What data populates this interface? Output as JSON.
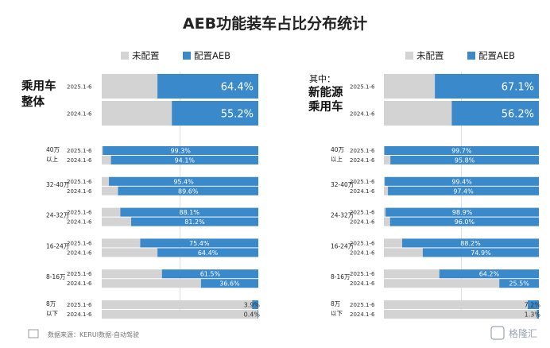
{
  "chart_data": {
    "type": "bar",
    "title": "AEB功能装车占比分布统计",
    "legend": [
      "未配置",
      "配置AEB"
    ],
    "colors": {
      "configured": "#3a8acb",
      "unconfigured": "#d3d3d3"
    },
    "panels": [
      {
        "note": "",
        "label_lines": [
          "乘用车",
          "整体"
        ],
        "overall": {
          "periods": [
            "2025.1-6",
            "2024.1-6"
          ],
          "values": [
            64.4,
            55.2
          ],
          "labels": [
            "64.4%",
            "55.2%"
          ]
        },
        "groups": [
          {
            "label_lines": [
              "40万",
              "以上"
            ],
            "periods": [
              "2025.1-6",
              "2024.1-6"
            ],
            "values": [
              99.3,
              94.1
            ],
            "labels": [
              "99.3%",
              "94.1%"
            ]
          },
          {
            "label_lines": [
              "32-40万"
            ],
            "periods": [
              "2025.1-6",
              "2024.1-6"
            ],
            "values": [
              95.4,
              89.6
            ],
            "labels": [
              "95.4%",
              "89.6%"
            ]
          },
          {
            "label_lines": [
              "24-32万"
            ],
            "periods": [
              "2025.1-6",
              "2024.1-6"
            ],
            "values": [
              88.1,
              81.2
            ],
            "labels": [
              "88.1%",
              "81.2%"
            ]
          },
          {
            "label_lines": [
              "16-24万"
            ],
            "periods": [
              "2025.1-6",
              "2024.1-6"
            ],
            "values": [
              75.4,
              64.4
            ],
            "labels": [
              "75.4%",
              "64.4%"
            ]
          },
          {
            "label_lines": [
              "8-16万"
            ],
            "periods": [
              "2025.1-6",
              "2024.1-6"
            ],
            "values": [
              61.5,
              36.6
            ],
            "labels": [
              "61.5%",
              "36.6%"
            ]
          },
          {
            "label_lines": [
              "8万",
              "以下"
            ],
            "periods": [
              "2025.1-6",
              "2024.1-6"
            ],
            "values": [
              3.9,
              0.4
            ],
            "labels": [
              "3.9%",
              "0.4%"
            ]
          }
        ]
      },
      {
        "note": "其中：",
        "label_lines": [
          "新能源",
          "乘用车"
        ],
        "overall": {
          "periods": [
            "2025.1-6",
            "2024.1-6"
          ],
          "values": [
            67.1,
            56.2
          ],
          "labels": [
            "67.1%",
            "56.2%"
          ]
        },
        "groups": [
          {
            "label_lines": [
              "40万",
              "以上"
            ],
            "periods": [
              "2025.1-6",
              "2024.1-6"
            ],
            "values": [
              99.7,
              95.8
            ],
            "labels": [
              "99.7%",
              "95.8%"
            ]
          },
          {
            "label_lines": [
              "32-40万"
            ],
            "periods": [
              "2025.1-6",
              "2024.1-6"
            ],
            "values": [
              99.4,
              97.4
            ],
            "labels": [
              "99.4%",
              "97.4%"
            ]
          },
          {
            "label_lines": [
              "24-32万"
            ],
            "periods": [
              "2025.1-6",
              "2024.1-6"
            ],
            "values": [
              98.9,
              96.0
            ],
            "labels": [
              "98.9%",
              "96.0%"
            ]
          },
          {
            "label_lines": [
              "16-24万"
            ],
            "periods": [
              "2025.1-6",
              "2024.1-6"
            ],
            "values": [
              88.2,
              74.9
            ],
            "labels": [
              "88.2%",
              "74.9%"
            ]
          },
          {
            "label_lines": [
              "8-16万"
            ],
            "periods": [
              "2025.1-6",
              "2024.1-6"
            ],
            "values": [
              64.2,
              25.5
            ],
            "labels": [
              "64.2%",
              "25.5%"
            ]
          },
          {
            "label_lines": [
              "8万",
              "以下"
            ],
            "periods": [
              "2025.1-6",
              "2024.1-6"
            ],
            "values": [
              7.2,
              1.3
            ],
            "labels": [
              "7.2%",
              "1.3%"
            ]
          }
        ]
      }
    ]
  },
  "source": "数据来源：KERUI数据-自动驾驶",
  "watermark": "格隆汇"
}
